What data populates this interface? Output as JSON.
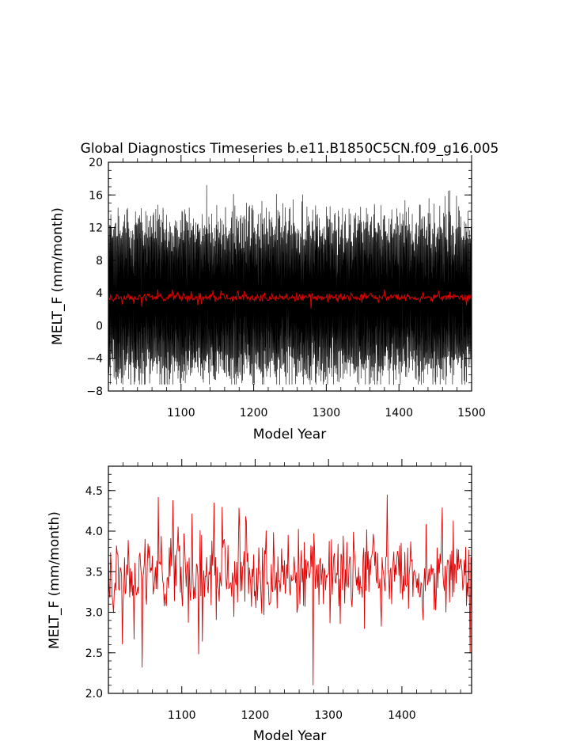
{
  "chart_data": [
    {
      "type": "line",
      "title": "Global Diagnostics Timeseries b.e11.B1850C5CN.f09_g16.005",
      "xlabel": "Model Year",
      "ylabel": "MELT_F (mm/month)",
      "xlim": [
        1000,
        1500
      ],
      "ylim": [
        -8,
        20
      ],
      "xticks": [
        "1100",
        "1200",
        "1300",
        "1400",
        "1500"
      ],
      "yticks": [
        "-8",
        "-4",
        "0",
        "4",
        "8",
        "12",
        "16",
        "20"
      ],
      "series": [
        {
          "color": "#000000",
          "kind": "monthly",
          "x_start": 1000,
          "x_end": 1500,
          "points_per_year": 12,
          "mean": 3.4,
          "seasonal_amplitude": 7.5,
          "upper_envelope_range": [
            11,
            17
          ],
          "lower_envelope_range": [
            -7,
            -2
          ]
        },
        {
          "color": "#e00000",
          "kind": "annual",
          "x_start": 1000,
          "x_end": 1500,
          "mean": 3.45,
          "range": [
            2.1,
            4.45
          ]
        }
      ]
    },
    {
      "type": "line",
      "title": "",
      "xlabel": "Model Year",
      "ylabel": "MELT_F (mm/month)",
      "xlim": [
        1000,
        1495
      ],
      "ylim": [
        2.0,
        4.8
      ],
      "xticks": [
        "1100",
        "1200",
        "1300",
        "1400"
      ],
      "yticks": [
        "2.0",
        "2.5",
        "3.0",
        "3.5",
        "4.0",
        "4.5"
      ],
      "series": [
        {
          "color": "#e00000",
          "kind": "annual",
          "x_start": 1000,
          "x_end": 1495,
          "mean": 3.45,
          "min": 2.1,
          "max": 4.45,
          "notable_points": [
            {
              "x": 1068,
              "y": 4.42
            },
            {
              "x": 1046,
              "y": 2.32
            },
            {
              "x": 1144,
              "y": 4.35
            },
            {
              "x": 1279,
              "y": 2.1
            },
            {
              "x": 1380,
              "y": 4.45
            },
            {
              "x": 1493,
              "y": 2.5
            }
          ]
        }
      ]
    }
  ]
}
